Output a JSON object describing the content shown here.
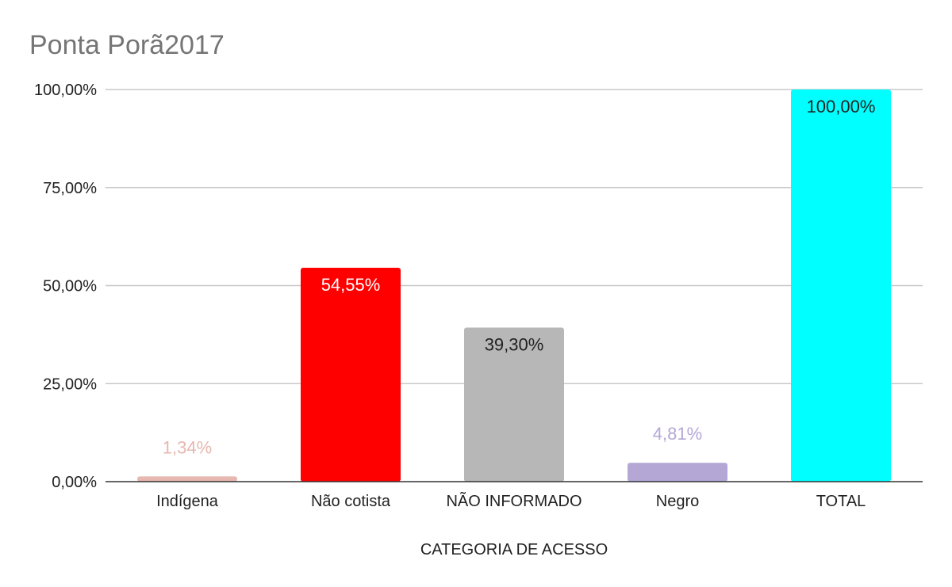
{
  "chart_data": {
    "type": "bar",
    "title": "Ponta Porã2017",
    "xlabel": "CATEGORIA DE ACESSO",
    "ylabel": "",
    "ylim": [
      0,
      100
    ],
    "yticks": [
      0,
      25,
      50,
      75,
      100
    ],
    "ytick_labels": [
      "0,00%",
      "25,00%",
      "50,00%",
      "75,00%",
      "100,00%"
    ],
    "grid": true,
    "legend": "none",
    "categories": [
      "Indígena",
      "Não cotista",
      "NÃO INFORMADO",
      "Negro",
      "TOTAL"
    ],
    "values": [
      1.34,
      54.55,
      39.3,
      4.81,
      100
    ],
    "data_labels": [
      "1,34%",
      "54,55%",
      "39,30%",
      "4,81%",
      "100,00%"
    ],
    "colors": [
      "#e6b8af",
      "#ff0000",
      "#b7b7b7",
      "#b4a7d6",
      "#00ffff"
    ],
    "label_colors": [
      "#e6b8af",
      "#ffffff",
      "#222222",
      "#b4a7d6",
      "#222222"
    ]
  }
}
